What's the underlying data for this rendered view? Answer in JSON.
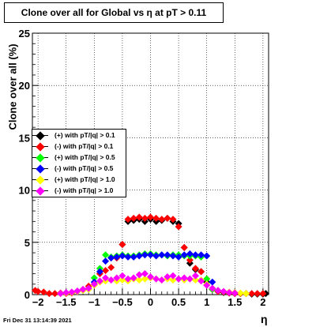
{
  "title": "Clone  over all for Global vs    η at pT > 0.11",
  "timestamp": "Fri Dec 31 13:14:39 2021",
  "chart_data": {
    "type": "scatter",
    "title": "Clone  over all for Global vs    η at pT > 0.11",
    "xlabel": "η",
    "ylabel": "Clone  over all (%)",
    "xlim": [
      -2.1,
      2.1
    ],
    "ylim": [
      0,
      25
    ],
    "x_ticks": [
      -2,
      -1.5,
      -1,
      -0.5,
      0,
      0.5,
      1,
      1.5,
      2
    ],
    "x_tick_labels": [
      "−2",
      "−1.5",
      "−1",
      "−0.5",
      "0",
      "0.5",
      "1",
      "1.5",
      "2"
    ],
    "y_ticks": [
      0,
      5,
      10,
      15,
      20,
      25
    ],
    "grid": true,
    "legend_position": "left",
    "series": [
      {
        "name": "(+) with pT/|q| > 0.1",
        "color": "#000000",
        "x": [
          -0.5,
          -0.4,
          -0.3,
          -0.2,
          -0.1,
          0.0,
          0.1,
          0.2,
          0.3,
          0.4,
          0.5,
          0.6,
          0.7,
          0.8,
          0.9,
          1.0,
          1.1,
          1.2,
          1.3,
          1.4,
          1.5,
          1.6,
          1.7,
          1.8,
          1.9,
          2.0,
          2.05
        ],
        "y": [
          4.8,
          7.0,
          7.1,
          7.2,
          7.0,
          7.2,
          7.0,
          7.1,
          7.3,
          7.0,
          6.8,
          4.5,
          3.0,
          2.4,
          2.2,
          1.2,
          0.5,
          0.3,
          0.2,
          0.15,
          0.1,
          0.1,
          0.1,
          0.05,
          0.05,
          0.05,
          0.1
        ]
      },
      {
        "name": "(-) with pT/|q| > 0.1",
        "color": "#ff0000",
        "x": [
          -2.05,
          -2.0,
          -1.9,
          -1.8,
          -1.7,
          -1.6,
          -1.5,
          -1.4,
          -1.3,
          -1.2,
          -1.1,
          -1.0,
          -0.9,
          -0.8,
          -0.7,
          -0.6,
          -0.5,
          -0.4,
          -0.3,
          -0.2,
          -0.1,
          0.0,
          0.1,
          0.2,
          0.3,
          0.4,
          0.5,
          0.6,
          0.7,
          0.8,
          0.9,
          1.0,
          1.1,
          1.2,
          1.3,
          1.4,
          1.5,
          1.6,
          1.7,
          1.8,
          1.9,
          2.0
        ],
        "y": [
          0.4,
          0.3,
          0.25,
          0.1,
          0.1,
          0.15,
          0.1,
          0.15,
          0.3,
          0.5,
          0.8,
          1.0,
          2.0,
          2.3,
          2.6,
          3.5,
          4.8,
          7.2,
          7.3,
          7.4,
          7.3,
          7.4,
          7.3,
          7.2,
          7.3,
          7.2,
          6.5,
          4.5,
          3.3,
          2.5,
          2.2,
          1.5,
          0.5,
          0.3,
          0.25,
          0.15,
          0.1,
          0.1,
          0.1,
          0.1,
          0.1,
          0.1
        ]
      },
      {
        "name": "(+) with pT/|q| > 0.5",
        "color": "#00ff00",
        "x": [
          -1.1,
          -1.0,
          -0.9,
          -0.8,
          -0.7,
          -0.6,
          -0.5,
          -0.4,
          -0.3,
          -0.2,
          -0.1,
          0.0,
          0.1,
          0.2,
          0.3,
          0.4,
          0.5,
          0.6,
          0.7,
          0.8,
          0.9,
          1.0,
          1.1
        ],
        "y": [
          0.6,
          1.6,
          2.5,
          3.8,
          3.6,
          3.7,
          3.8,
          3.7,
          3.7,
          3.8,
          3.9,
          3.9,
          3.8,
          3.8,
          3.7,
          3.8,
          3.8,
          3.7,
          3.7,
          3.7,
          3.6,
          1.5,
          0.5
        ]
      },
      {
        "name": "(-) with pT/|q| > 0.5",
        "color": "#0000ff",
        "x": [
          -1.0,
          -0.9,
          -0.8,
          -0.7,
          -0.6,
          -0.5,
          -0.4,
          -0.3,
          -0.2,
          -0.1,
          0.0,
          0.1,
          0.2,
          0.3,
          0.4,
          0.5,
          0.6,
          0.7,
          0.8,
          0.9,
          1.0,
          1.1,
          1.2
        ],
        "y": [
          1.2,
          2.2,
          3.2,
          3.5,
          3.6,
          3.7,
          3.6,
          3.6,
          3.7,
          3.8,
          3.8,
          3.7,
          3.8,
          3.8,
          3.7,
          3.6,
          3.8,
          3.9,
          3.8,
          3.8,
          3.7,
          1.2,
          0.4
        ]
      },
      {
        "name": "(+) with pT/|q| > 1.0",
        "color": "#ffff00",
        "x": [
          -1.6,
          -1.5,
          -1.4,
          -1.3,
          -1.2,
          -1.1,
          -1.0,
          -0.9,
          -0.8,
          -0.7,
          -0.6,
          -0.5,
          -0.4,
          -0.3,
          -0.2,
          -0.1,
          0.0,
          0.1,
          0.2,
          0.3,
          0.4,
          0.5,
          0.6,
          0.7,
          0.8,
          0.9,
          1.0,
          1.1,
          1.2,
          1.3,
          1.4,
          1.5,
          1.6,
          1.7
        ],
        "y": [
          0.1,
          0.15,
          0.2,
          0.3,
          0.4,
          0.5,
          0.9,
          1.2,
          1.3,
          1.4,
          1.3,
          1.4,
          1.3,
          1.5,
          1.4,
          1.5,
          1.6,
          1.5,
          1.4,
          1.5,
          1.4,
          1.5,
          1.4,
          1.5,
          1.4,
          1.4,
          1.0,
          0.6,
          0.4,
          0.3,
          0.25,
          0.2,
          0.15,
          0.1
        ]
      },
      {
        "name": "(-) with pT/|q| > 1.0",
        "color": "#ff00ff",
        "x": [
          -1.6,
          -1.5,
          -1.4,
          -1.3,
          -1.2,
          -1.1,
          -1.0,
          -0.9,
          -0.8,
          -0.7,
          -0.6,
          -0.5,
          -0.4,
          -0.3,
          -0.2,
          -0.1,
          0.0,
          0.1,
          0.2,
          0.3,
          0.4,
          0.5,
          0.6,
          0.7,
          0.8,
          0.9,
          1.0,
          1.1,
          1.2,
          1.3,
          1.4,
          1.5
        ],
        "y": [
          0.1,
          0.2,
          0.25,
          0.35,
          0.5,
          0.6,
          1.0,
          1.3,
          1.6,
          1.4,
          1.6,
          1.8,
          1.5,
          1.6,
          1.9,
          2.0,
          1.7,
          1.5,
          1.4,
          1.7,
          1.8,
          1.5,
          1.6,
          1.5,
          1.8,
          1.3,
          0.9,
          0.6,
          0.4,
          0.3,
          0.2,
          0.15
        ]
      }
    ]
  }
}
